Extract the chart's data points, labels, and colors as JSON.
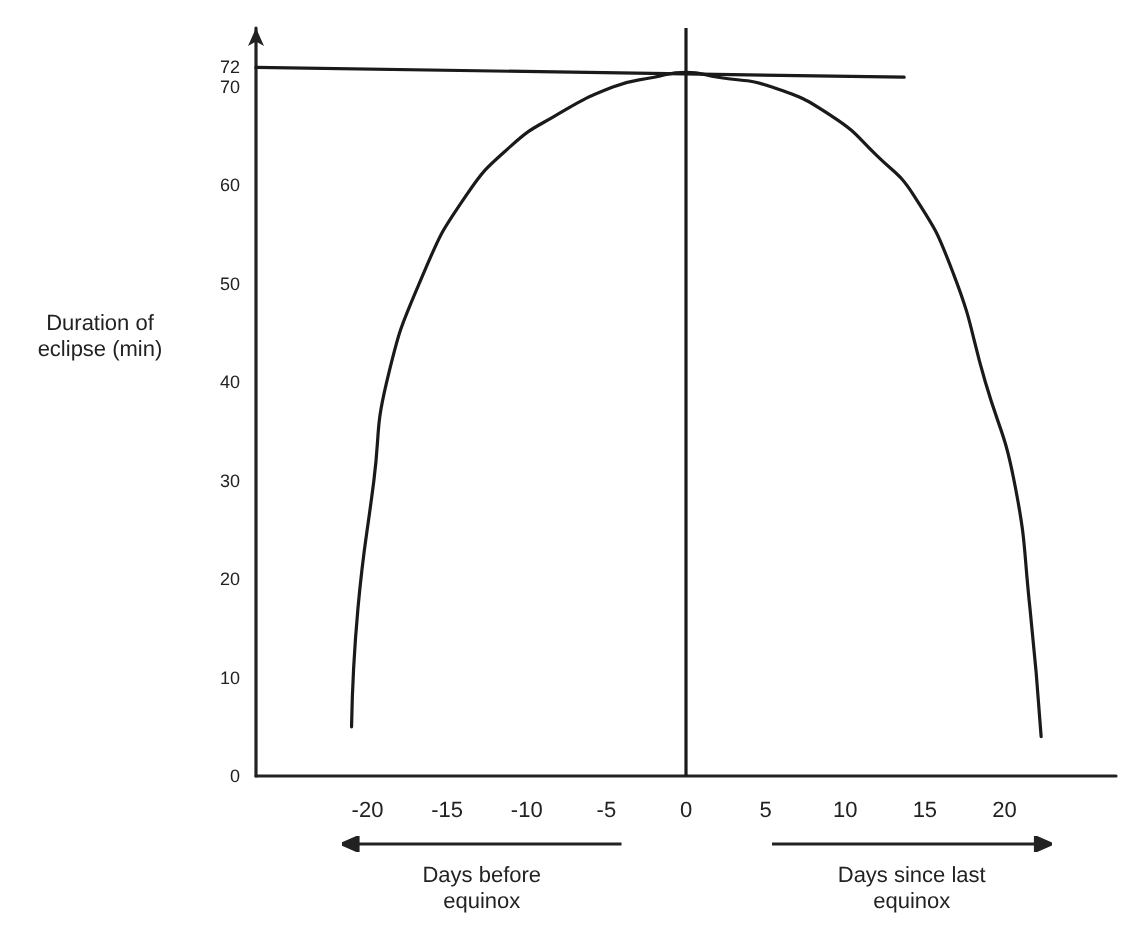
{
  "chart_data": {
    "type": "line",
    "ylabel": "Duration of eclipse (min)",
    "annotations": [
      "Days before equinox",
      "Days since last equinox"
    ],
    "series": [
      {
        "color": "#1a1a1a",
        "x": [
          -21,
          -20.6,
          -19.6,
          -18.8,
          -16.5,
          -13.8,
          -11,
          -8.3,
          -4.6,
          -2,
          0,
          2,
          5.4,
          9.2,
          12,
          14.3,
          16.8,
          18.8,
          20.6,
          21.6,
          22.3
        ],
        "values": [
          5,
          17,
          30,
          40,
          51,
          59,
          64,
          67,
          70,
          71,
          71.5,
          71,
          70,
          67,
          63,
          59,
          51,
          40,
          30,
          17,
          4
        ]
      },
      {
        "color": "#1a1a1a",
        "x": [
          -27,
          13.7
        ],
        "values": [
          72,
          71
        ]
      }
    ],
    "ref_lines": [
      {
        "axis": "x",
        "value": 0,
        "color": "#1a1a1a"
      }
    ],
    "xlim": [
      -27,
      27
    ],
    "xticks": [
      -20,
      -15,
      -10,
      -5,
      0,
      5,
      10,
      15,
      20
    ],
    "ylim": [
      0,
      76
    ],
    "yticks": [
      0,
      10,
      20,
      30,
      40,
      50,
      60,
      70,
      72
    ],
    "grid": false,
    "marker": "none",
    "line_style": "solid"
  }
}
